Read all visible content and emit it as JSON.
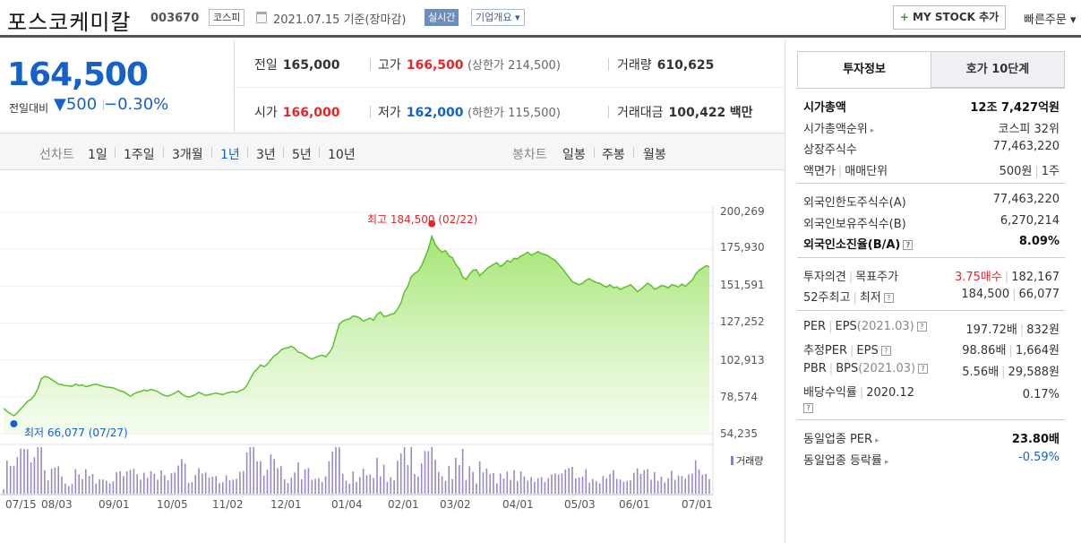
{
  "header": {
    "stock_name": "포스코케미칼",
    "stock_code": "003670",
    "market": "코스피",
    "date": "2021.07.15  기준(장마감)",
    "realtime": "실시간",
    "overview": "기업개요 ▾",
    "mystock": "MY STOCK 추가",
    "mystock_plus": "+",
    "quick_order": "빠른주문 ▾"
  },
  "price": {
    "current": "164,500",
    "change_label": "전일대비",
    "change_value": "▼500",
    "change_pct": "−0.30%"
  },
  "stats": {
    "prev_label": "전일",
    "prev_value": "165,000",
    "high_label": "고가",
    "high_value": "166,500",
    "high_sub": "(상한가 214,500)",
    "volume_label": "거래량",
    "volume_value": "610,625",
    "open_label": "시가",
    "open_value": "166,000",
    "low_label": "저가",
    "low_value": "162,000",
    "low_sub": "(하한가 115,500)",
    "amount_label": "거래대금",
    "amount_value": "100,422",
    "amount_unit": "백만"
  },
  "periods": {
    "line_label": "선차트",
    "line_items": [
      "1일",
      "1주일",
      "3개월",
      "1년",
      "3년",
      "5년",
      "10년"
    ],
    "active": "1년",
    "candle_label": "봉차트",
    "candle_items": [
      "일봉",
      "주봉",
      "월봉"
    ]
  },
  "chart_data": {
    "type": "area",
    "y_ticks": [
      "200,269",
      "175,930",
      "151,591",
      "127,252",
      "102,913",
      "78,574",
      "54,235"
    ],
    "x_ticks": [
      "07/15",
      "08/03",
      "09/01",
      "10/05",
      "11/02",
      "12/01",
      "01/04",
      "02/01",
      "03/02",
      "04/01",
      "05/03",
      "06/01",
      "07/01"
    ],
    "ylim": [
      54235,
      200269
    ],
    "high_annotation": "최고 184,500 (02/22)",
    "low_annotation": "최저 66,077 (07/27)",
    "volume_legend": "거래량",
    "series": [
      {
        "values": [
          71000,
          69000,
          67500,
          66077,
          68000,
          70500,
          73000,
          75500,
          77000,
          79500,
          84000,
          90500,
          92000,
          91500,
          90000,
          88500,
          87000,
          86500,
          86000,
          85800,
          85500,
          87000,
          86000,
          86500,
          85200,
          85800,
          86500,
          87000,
          86200,
          85500,
          85000,
          84800,
          84500,
          83500,
          82500,
          82000,
          80500,
          79000,
          80500,
          81500,
          82000,
          83000,
          82500,
          83500,
          82800,
          82000,
          80500,
          79500,
          79000,
          80000,
          81000,
          82500,
          80500,
          79000,
          78500,
          79000,
          80000,
          81500,
          80500,
          79500,
          80000,
          80500,
          81000,
          80500,
          80000,
          81000,
          81500,
          82000,
          81500,
          82500,
          83500,
          86000,
          90500,
          94500,
          97000,
          99500,
          98500,
          100000,
          103000,
          105500,
          107000,
          109500,
          110500,
          111000,
          112000,
          110500,
          108000,
          107500,
          106000,
          104500,
          103500,
          104500,
          105500,
          106000,
          105000,
          107500,
          111000,
          119000,
          126500,
          128500,
          129500,
          130000,
          132000,
          131500,
          130500,
          128500,
          129500,
          130500,
          129000,
          133000,
          134500,
          131500,
          132000,
          133000,
          133500,
          136500,
          140500,
          148000,
          151500,
          158000,
          160000,
          161500,
          165000,
          170500,
          176000,
          184500,
          179000,
          176000,
          174000,
          175000,
          171500,
          170500,
          166000,
          163000,
          157500,
          156000,
          159500,
          162000,
          162500,
          158500,
          160500,
          163000,
          164500,
          166000,
          167000,
          164500,
          166000,
          168500,
          167500,
          170000,
          169500,
          171500,
          172500,
          174000,
          172000,
          173000,
          174500,
          173000,
          172500,
          171500,
          170000,
          168500,
          166000,
          163500,
          160500,
          157500,
          154500,
          153500,
          152500,
          153500,
          155500,
          156500,
          155000,
          154000,
          153500,
          152000,
          151000,
          152500,
          150500,
          151000,
          149500,
          150500,
          151500,
          152500,
          150500,
          148000,
          149500,
          151500,
          153500,
          152000,
          149500,
          150500,
          152000,
          151500,
          150500,
          152500,
          152000,
          151000,
          153000,
          151500,
          153500,
          155500,
          159500,
          162000,
          163500,
          165000,
          164500
        ]
      }
    ]
  },
  "info": {
    "tab_active": "투자정보",
    "tab_inactive": "호가 10단계",
    "market_cap_label": "시가총액",
    "market_cap_value": "12조 7,427억원",
    "cap_rank_label": "시가총액순위",
    "cap_rank_value": "코스피 32위",
    "shares_label": "상장주식수",
    "shares_value": "77,463,220",
    "par_label": "액면가",
    "par_label2": "매매단위",
    "par_value": "500원",
    "par_value2": "1주",
    "foreign_limit_label": "외국인한도주식수(A)",
    "foreign_limit_value": "77,463,220",
    "foreign_hold_label": "외국인보유주식수(B)",
    "foreign_hold_value": "6,270,214",
    "foreign_ratio_label": "외국인소진율(B/A)",
    "foreign_ratio_value": "8.09%",
    "opinion_label": "투자의견",
    "opinion_label2": "목표주가",
    "opinion_value": "3.75매수",
    "opinion_value2": "182,167",
    "week52_label": "52주최고",
    "week52_label2": "최저",
    "week52_value": "184,500",
    "week52_value2": "66,077",
    "per_label": "PER",
    "per_label2": "EPS",
    "per_period": "(2021.03)",
    "per_value": "197.72배",
    "per_value2": "832원",
    "est_per_label": "추정PER",
    "est_per_label2": "EPS",
    "est_per_value": "98.86배",
    "est_per_value2": "1,664원",
    "pbr_label": "PBR",
    "pbr_label2": "BPS",
    "pbr_period": "(2021.03)",
    "pbr_value": "5.56배",
    "pbr_value2": "29,588원",
    "div_label": "배당수익률",
    "div_period": "2020.12",
    "div_value": "0.17%",
    "sector_per_label": "동일업종 PER",
    "sector_per_value": "23.80배",
    "sector_chg_label": "동일업종 등락률",
    "sector_chg_value": "-0.59%"
  }
}
